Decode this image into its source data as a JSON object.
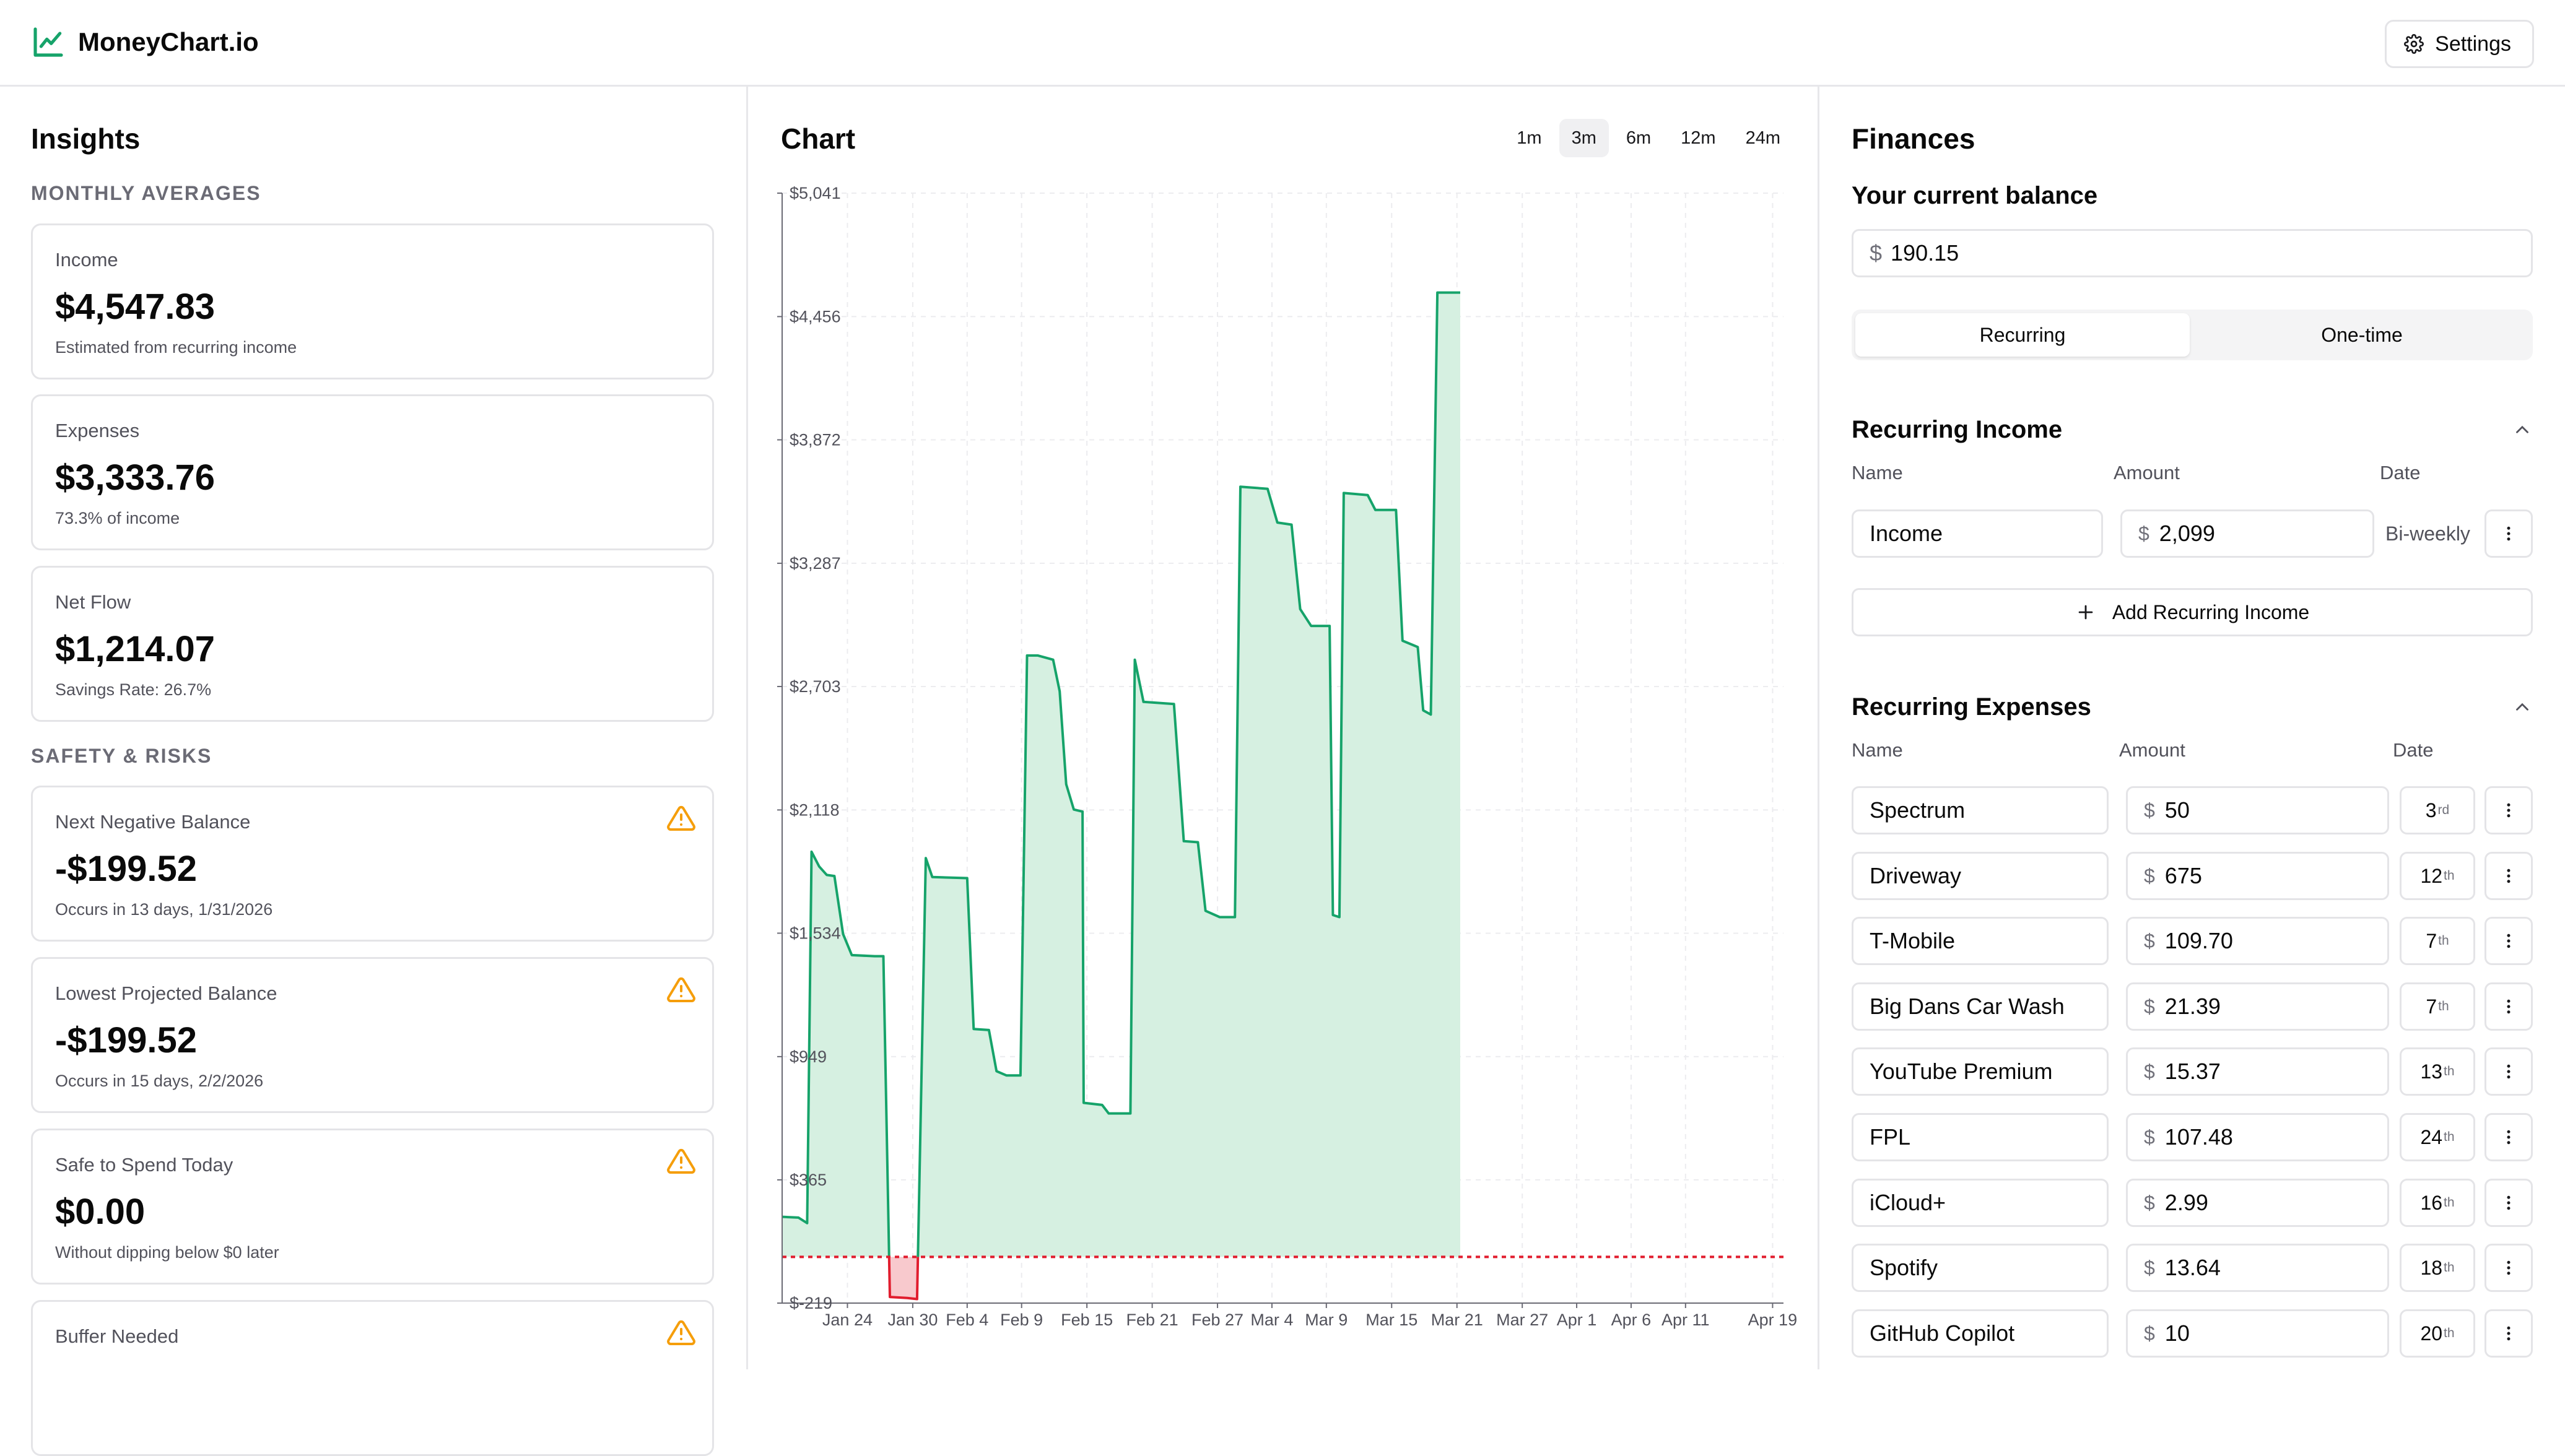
{
  "app": {
    "name": "MoneyChart.io",
    "logo_icon": "trend-line-icon",
    "accent": "#16a36a"
  },
  "header": {
    "settings_label": "Settings",
    "settings_icon": "gear-icon"
  },
  "insights": {
    "title": "Insights",
    "monthly_caption": "MONTHLY AVERAGES",
    "safety_caption": "SAFETY & RISKS",
    "cards": [
      {
        "label": "Income",
        "value": "$4,547.83",
        "sub": "Estimated from recurring income",
        "warn": false
      },
      {
        "label": "Expenses",
        "value": "$3,333.76",
        "sub": "73.3% of income",
        "warn": false
      },
      {
        "label": "Net Flow",
        "value": "$1,214.07",
        "sub": "Savings Rate: 26.7%",
        "warn": false
      },
      {
        "label": "Next Negative Balance",
        "value": "-$199.52",
        "sub": "Occurs in 13 days, 1/31/2026",
        "warn": true
      },
      {
        "label": "Lowest Projected Balance",
        "value": "-$199.52",
        "sub": "Occurs in 15 days, 2/2/2026",
        "warn": true
      },
      {
        "label": "Safe to Spend Today",
        "value": "$0.00",
        "sub": "Without dipping below $0 later",
        "warn": true
      },
      {
        "label": "Buffer Needed",
        "value": "",
        "sub": "",
        "warn": true
      }
    ],
    "warning_color": "#f59e0b"
  },
  "chart": {
    "title": "Chart",
    "ranges": [
      "1m",
      "3m",
      "6m",
      "12m",
      "24m"
    ],
    "active_range": "3m",
    "colors": {
      "line": "#16a36a",
      "fill": "#d6f0e1",
      "negative": "#f8c9cd",
      "negative_line": "#e11d2e",
      "zero_line": "#e11d2e"
    }
  },
  "chart_data": {
    "type": "area",
    "title": "",
    "xlabel": "",
    "ylabel": "",
    "yticks": [
      "$5,041",
      "$4,456",
      "$3,872",
      "$3,287",
      "$2,703",
      "$2,118",
      "$1,534",
      "$949",
      "$365",
      "$-219"
    ],
    "ytick_values": [
      5041,
      4456,
      3872,
      3287,
      2703,
      2118,
      1534,
      949,
      365,
      -219
    ],
    "ylim": [
      -219,
      5041
    ],
    "xticks": [
      "Jan 24",
      "Jan 30",
      "Feb 4",
      "Feb 9",
      "Feb 15",
      "Feb 21",
      "Feb 27",
      "Mar 4",
      "Mar 9",
      "Mar 15",
      "Mar 21",
      "Mar 27",
      "Apr 1",
      "Apr 6",
      "Apr 11",
      "Apr 19"
    ],
    "xtick_days": [
      6,
      12,
      17,
      22,
      28,
      34,
      40,
      45,
      50,
      56,
      62,
      68,
      73,
      78,
      83,
      91
    ],
    "xlim_days": [
      0,
      92
    ],
    "x_origin": "Jan 18",
    "zero_reference": 0,
    "grid": true,
    "series": [
      {
        "points": [
          [
            0,
            190
          ],
          [
            1.5,
            186
          ],
          [
            2.3,
            160
          ],
          [
            2.7,
            1920
          ],
          [
            3.4,
            1850
          ],
          [
            4.1,
            1810
          ],
          [
            4.8,
            1805
          ],
          [
            5.6,
            1530
          ],
          [
            6.4,
            1430
          ],
          [
            8.5,
            1425
          ],
          [
            9.3,
            1425
          ],
          [
            9.9,
            -190
          ],
          [
            11.5,
            -195
          ],
          [
            12.4,
            -200
          ],
          [
            13.2,
            1890
          ],
          [
            13.8,
            1800
          ],
          [
            17.0,
            1795
          ],
          [
            17.6,
            1080
          ],
          [
            19.0,
            1075
          ],
          [
            19.7,
            880
          ],
          [
            20.6,
            860
          ],
          [
            21.9,
            860
          ],
          [
            22.5,
            2850
          ],
          [
            23.5,
            2850
          ],
          [
            24.9,
            2830
          ],
          [
            25.5,
            2680
          ],
          [
            26.1,
            2240
          ],
          [
            26.8,
            2120
          ],
          [
            27.6,
            2110
          ],
          [
            27.7,
            730
          ],
          [
            29.4,
            720
          ],
          [
            30.0,
            680
          ],
          [
            32.0,
            680
          ],
          [
            32.4,
            2830
          ],
          [
            33.2,
            2630
          ],
          [
            36.0,
            2620
          ],
          [
            36.9,
            1970
          ],
          [
            38.2,
            1965
          ],
          [
            38.9,
            1640
          ],
          [
            40.2,
            1610
          ],
          [
            41.6,
            1610
          ],
          [
            42.1,
            3650
          ],
          [
            44.6,
            3640
          ],
          [
            45.5,
            3480
          ],
          [
            46.8,
            3470
          ],
          [
            47.6,
            3070
          ],
          [
            48.6,
            2990
          ],
          [
            50.3,
            2990
          ],
          [
            50.6,
            1620
          ],
          [
            51.2,
            1610
          ],
          [
            51.6,
            3620
          ],
          [
            53.8,
            3610
          ],
          [
            54.5,
            3540
          ],
          [
            56.4,
            3540
          ],
          [
            57.0,
            2920
          ],
          [
            58.4,
            2890
          ],
          [
            58.9,
            2590
          ],
          [
            59.6,
            2570
          ],
          [
            60.2,
            4570
          ],
          [
            62.3,
            4570
          ]
        ]
      }
    ]
  },
  "finances": {
    "title": "Finances",
    "balance_label": "Your current balance",
    "currency": "$",
    "balance": "190.15",
    "tabs": [
      "Recurring",
      "One-time"
    ],
    "active_tab": "Recurring",
    "income_section": {
      "title": "Recurring Income",
      "col_name": "Name",
      "col_amount": "Amount",
      "col_date": "Date",
      "items": [
        {
          "name": "Income",
          "amount": "2,099",
          "frequency": "Bi-weekly"
        }
      ],
      "add_label": "Add Recurring Income"
    },
    "expense_section": {
      "title": "Recurring Expenses",
      "col_name": "Name",
      "col_amount": "Amount",
      "col_date": "Date",
      "items": [
        {
          "name": "Spectrum",
          "amount": "50",
          "day": "3",
          "suffix": "rd"
        },
        {
          "name": "Driveway",
          "amount": "675",
          "day": "12",
          "suffix": "th"
        },
        {
          "name": "T-Mobile",
          "amount": "109.70",
          "day": "7",
          "suffix": "th"
        },
        {
          "name": "Big Dans Car Wash",
          "amount": "21.39",
          "day": "7",
          "suffix": "th"
        },
        {
          "name": "YouTube Premium",
          "amount": "15.37",
          "day": "13",
          "suffix": "th"
        },
        {
          "name": "FPL",
          "amount": "107.48",
          "day": "24",
          "suffix": "th"
        },
        {
          "name": "iCloud+",
          "amount": "2.99",
          "day": "16",
          "suffix": "th"
        },
        {
          "name": "Spotify",
          "amount": "13.64",
          "day": "18",
          "suffix": "th"
        },
        {
          "name": "GitHub Copilot",
          "amount": "10",
          "day": "20",
          "suffix": "th"
        }
      ]
    }
  }
}
